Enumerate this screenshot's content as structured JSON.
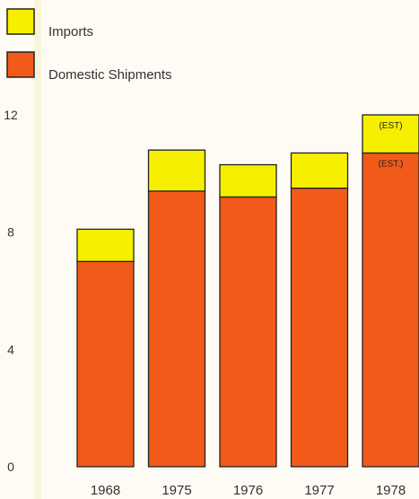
{
  "legend": {
    "imports_label": "Imports",
    "domestic_label": "Domestic Shipments",
    "placement": "top-left"
  },
  "chart_data": {
    "type": "bar",
    "stacked": true,
    "categories": [
      "1968",
      "1975",
      "1976",
      "1977",
      "1978"
    ],
    "series": [
      {
        "name": "Domestic Shipments",
        "values": [
          7.0,
          9.4,
          9.2,
          9.5,
          10.7
        ],
        "color": "#f25a1a"
      },
      {
        "name": "Imports",
        "values": [
          1.1,
          1.4,
          1.1,
          1.2,
          1.3
        ],
        "color": "#f6f000"
      }
    ],
    "ylim": [
      0,
      12
    ],
    "yticks": [
      0,
      4,
      8,
      12
    ],
    "grid": false,
    "annotations": [
      {
        "category": "1978",
        "series": "Imports",
        "text": "(EST)"
      },
      {
        "category": "1978",
        "series": "Domestic Shipments",
        "text": "(EST.)"
      }
    ]
  }
}
